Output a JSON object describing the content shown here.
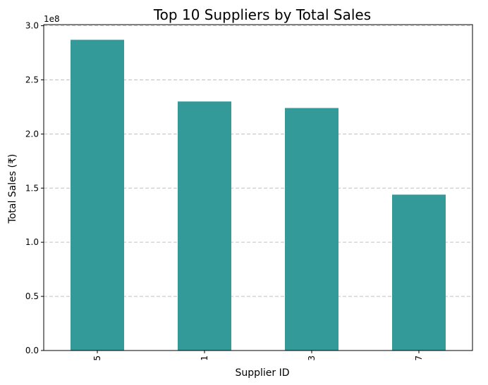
{
  "chart_data": {
    "type": "bar",
    "title": "Top 10 Suppliers by Total Sales",
    "xlabel": "Supplier ID",
    "ylabel": "Total Sales (₹)",
    "y_offset_label": "1e8",
    "categories": [
      "5",
      "1",
      "3",
      "7"
    ],
    "values": [
      287000000,
      230000000,
      224000000,
      144000000
    ],
    "ylim": [
      0,
      301000000
    ],
    "yticks": [
      0,
      50000000,
      100000000,
      150000000,
      200000000,
      250000000,
      300000000
    ],
    "ytick_labels": [
      "0.0",
      "0.5",
      "1.0",
      "1.5",
      "2.0",
      "2.5",
      "3.0"
    ],
    "grid": "y-dashed",
    "bar_color": "#339999",
    "grid_color": "#c0c0c0"
  }
}
